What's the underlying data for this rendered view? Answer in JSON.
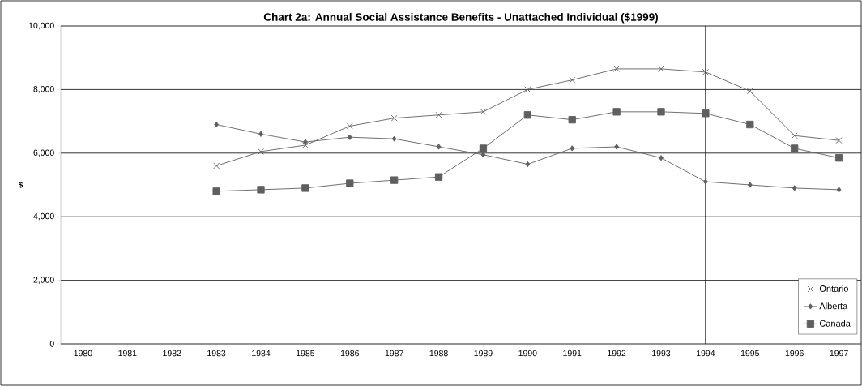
{
  "chart_data": {
    "type": "line",
    "title": "Chart 2a: Annual Social Assistance Benefits - Unattached Individual ($1999)",
    "ylabel": "$",
    "series": [
      {
        "name": "Ontario",
        "color": "#5f5f5f",
        "marker": "cross",
        "x": [
          1983,
          1984,
          1985,
          1986,
          1987,
          1988,
          1989,
          1990,
          1991,
          1992,
          1993,
          1994,
          1995,
          1996,
          1997
        ],
        "values": [
          5600,
          6050,
          6250,
          6850,
          7100,
          7200,
          7300,
          8000,
          8300,
          8650,
          8650,
          8550,
          7950,
          6550,
          6400
        ]
      },
      {
        "name": "Alberta",
        "color": "#5f5f5f",
        "marker": "diamond",
        "x": [
          1983,
          1984,
          1985,
          1986,
          1987,
          1988,
          1989,
          1990,
          1991,
          1992,
          1993,
          1994,
          1995,
          1996,
          1997
        ],
        "values": [
          6900,
          6600,
          6350,
          6500,
          6450,
          6200,
          5950,
          5650,
          6150,
          6200,
          5850,
          5100,
          5000,
          4900,
          4850
        ]
      },
      {
        "name": "Canada",
        "color": "#5f5f5f",
        "marker": "square",
        "x": [
          1983,
          1984,
          1985,
          1986,
          1987,
          1988,
          1989,
          1990,
          1991,
          1992,
          1993,
          1994,
          1995,
          1996,
          1997
        ],
        "values": [
          4800,
          4850,
          4900,
          5050,
          5150,
          5250,
          6150,
          7200,
          7050,
          7300,
          7300,
          7250,
          6900,
          6150,
          5850
        ]
      }
    ],
    "xlim": [
      1979.5,
      1997.5
    ],
    "xticks": [
      1980,
      1981,
      1982,
      1983,
      1984,
      1985,
      1986,
      1987,
      1988,
      1989,
      1990,
      1991,
      1992,
      1993,
      1994,
      1995,
      1996,
      1997
    ],
    "ylim": [
      0,
      10000
    ],
    "yticks": [
      {
        "value": 0,
        "label": "0"
      },
      {
        "value": 2000,
        "label": "2,000"
      },
      {
        "value": 4000,
        "label": "4,000"
      },
      {
        "value": 6000,
        "label": "6,000"
      },
      {
        "value": 8000,
        "label": "8,000"
      },
      {
        "value": 10000,
        "label": "10,000"
      }
    ],
    "ref_lines": [
      {
        "axis": "x",
        "value": 1994,
        "color": "#000000"
      }
    ],
    "grid": "y",
    "legend": "bottom right",
    "line_style": "solid"
  }
}
